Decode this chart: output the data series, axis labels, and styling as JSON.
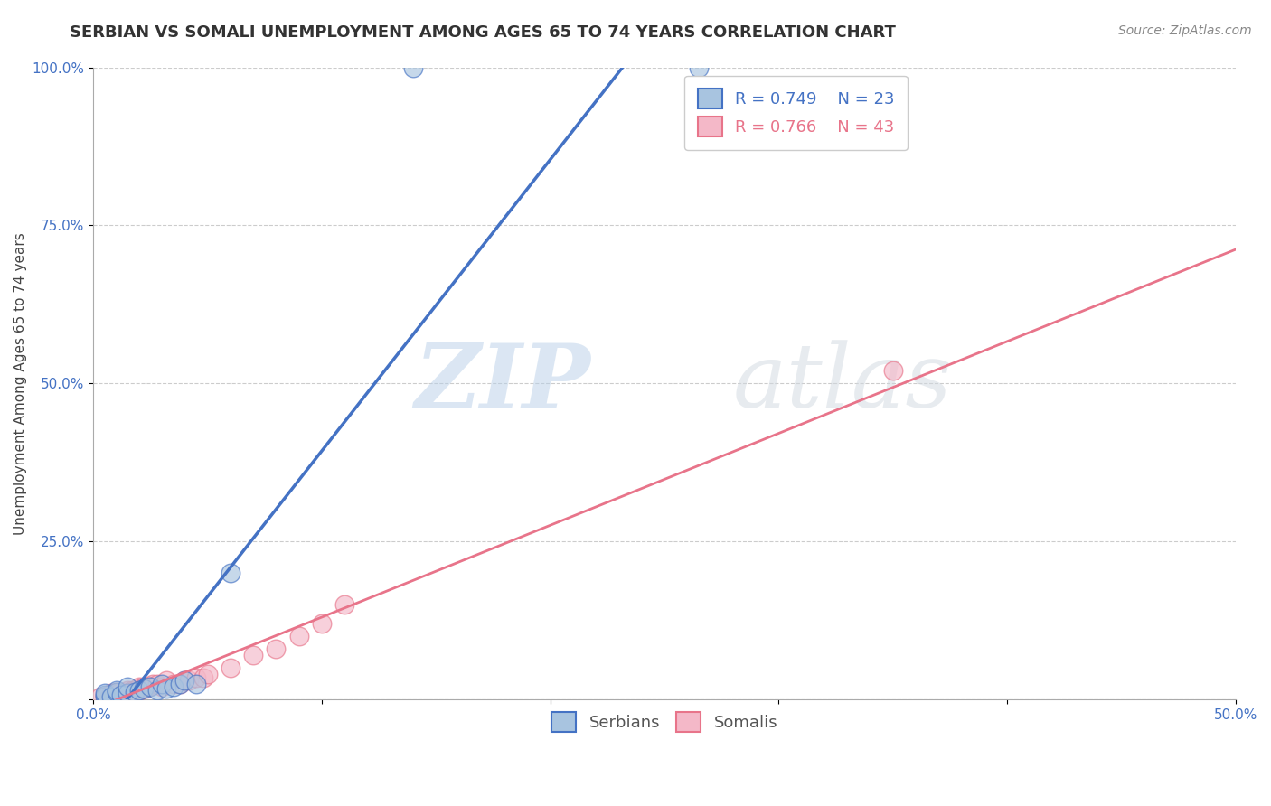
{
  "title": "SERBIAN VS SOMALI UNEMPLOYMENT AMONG AGES 65 TO 74 YEARS CORRELATION CHART",
  "source": "Source: ZipAtlas.com",
  "ylabel": "Unemployment Among Ages 65 to 74 years",
  "xlabel": "",
  "xlim": [
    0.0,
    0.5
  ],
  "ylim": [
    0.0,
    1.0
  ],
  "xticks": [
    0.0,
    0.1,
    0.2,
    0.3,
    0.4,
    0.5
  ],
  "yticks": [
    0.0,
    0.25,
    0.5,
    0.75,
    1.0
  ],
  "xticklabels": [
    "0.0%",
    "",
    "",
    "",
    "",
    "50.0%"
  ],
  "yticklabels": [
    "",
    "25.0%",
    "50.0%",
    "75.0%",
    "100.0%"
  ],
  "serbian_color": "#a8c4e0",
  "somali_color": "#f4b8c8",
  "serbian_line_color": "#4472c4",
  "somali_line_color": "#e8748a",
  "legend_R_serbian": "R = 0.749",
  "legend_N_serbian": "N = 23",
  "legend_R_somali": "R = 0.766",
  "legend_N_somali": "N = 43",
  "serbian_scatter_x": [
    0.005,
    0.005,
    0.005,
    0.008,
    0.01,
    0.01,
    0.012,
    0.015,
    0.015,
    0.018,
    0.02,
    0.022,
    0.025,
    0.028,
    0.03,
    0.032,
    0.035,
    0.038,
    0.04,
    0.045,
    0.06,
    0.14,
    0.265
  ],
  "serbian_scatter_y": [
    0.005,
    0.008,
    0.01,
    0.005,
    0.012,
    0.015,
    0.008,
    0.01,
    0.02,
    0.012,
    0.015,
    0.018,
    0.02,
    0.015,
    0.025,
    0.018,
    0.02,
    0.025,
    0.03,
    0.025,
    0.2,
    1.0,
    1.0
  ],
  "somali_scatter_x": [
    0.003,
    0.005,
    0.006,
    0.007,
    0.008,
    0.008,
    0.009,
    0.01,
    0.01,
    0.011,
    0.012,
    0.013,
    0.014,
    0.015,
    0.015,
    0.016,
    0.017,
    0.018,
    0.019,
    0.02,
    0.02,
    0.021,
    0.022,
    0.023,
    0.025,
    0.026,
    0.028,
    0.03,
    0.032,
    0.035,
    0.038,
    0.04,
    0.042,
    0.045,
    0.048,
    0.05,
    0.06,
    0.07,
    0.08,
    0.09,
    0.1,
    0.11,
    0.35
  ],
  "somali_scatter_y": [
    0.004,
    0.005,
    0.006,
    0.005,
    0.007,
    0.01,
    0.006,
    0.008,
    0.012,
    0.01,
    0.008,
    0.01,
    0.012,
    0.01,
    0.015,
    0.012,
    0.014,
    0.015,
    0.012,
    0.018,
    0.02,
    0.016,
    0.02,
    0.018,
    0.022,
    0.025,
    0.025,
    0.02,
    0.03,
    0.025,
    0.025,
    0.03,
    0.03,
    0.035,
    0.035,
    0.04,
    0.05,
    0.07,
    0.08,
    0.1,
    0.12,
    0.15,
    0.52
  ],
  "watermark_zip": "ZIP",
  "watermark_atlas": "atlas",
  "background_color": "#ffffff",
  "grid_color": "#cccccc",
  "title_fontsize": 13,
  "axis_label_fontsize": 11,
  "tick_fontsize": 11,
  "legend_fontsize": 13,
  "source_fontsize": 10
}
